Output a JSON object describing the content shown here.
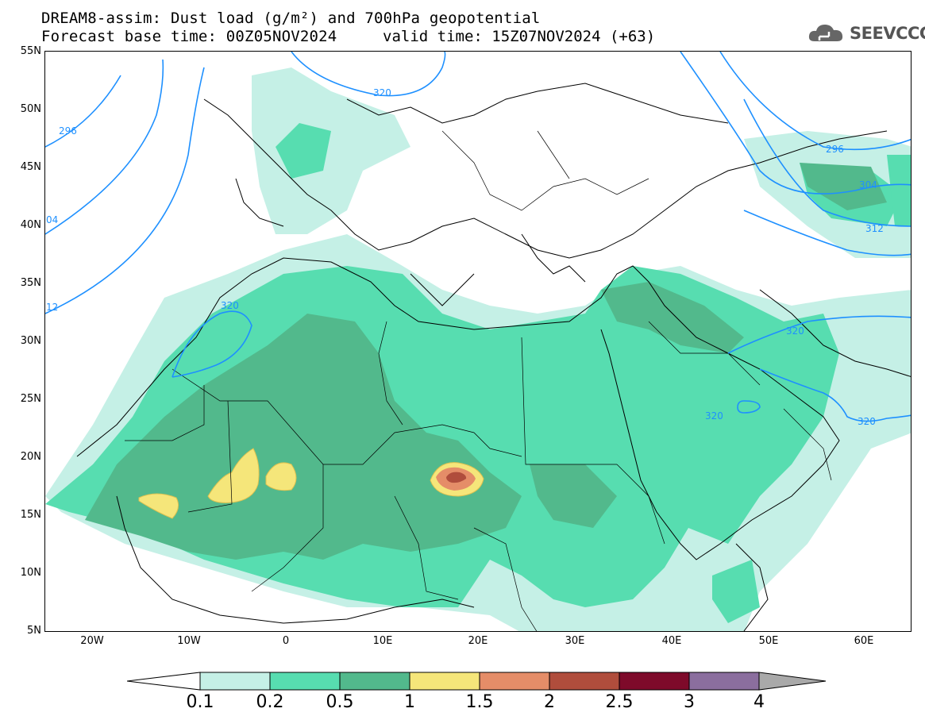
{
  "header": {
    "title_line1": "DREAM8-assim: Dust load (g/m²) and 700hPa geopotential",
    "title_line2": "Forecast base time: 00Z05NOV2024",
    "valid_time": "valid time: 15Z07NOV2024 (+63)",
    "logo_text": "SEEVCCC"
  },
  "map": {
    "lat_labels": [
      "55N",
      "50N",
      "45N",
      "40N",
      "35N",
      "30N",
      "25N",
      "20N",
      "15N",
      "10N",
      "5N"
    ],
    "lon_labels": [
      "20W",
      "10W",
      "0",
      "10E",
      "20E",
      "30E",
      "40E",
      "50E",
      "60E"
    ],
    "contour_labels": [
      "296",
      "04",
      "12",
      "320",
      "320",
      "296",
      "304",
      "312",
      "320",
      "320",
      "320"
    ],
    "colors": {
      "ocean_bg": "#ffffff",
      "coast": "#000000",
      "contour": "#1e90ff"
    }
  },
  "colorbar": {
    "labels": [
      "0.1",
      "0.2",
      "0.5",
      "1",
      "1.5",
      "2",
      "2.5",
      "3",
      "4"
    ],
    "colors": [
      "#ffffff",
      "#c5f0e6",
      "#57ddb0",
      "#52b98c",
      "#f5e67a",
      "#e58d68",
      "#b04d3c",
      "#7e0a2a",
      "#8b6e9e",
      "#a9a9a9"
    ]
  }
}
